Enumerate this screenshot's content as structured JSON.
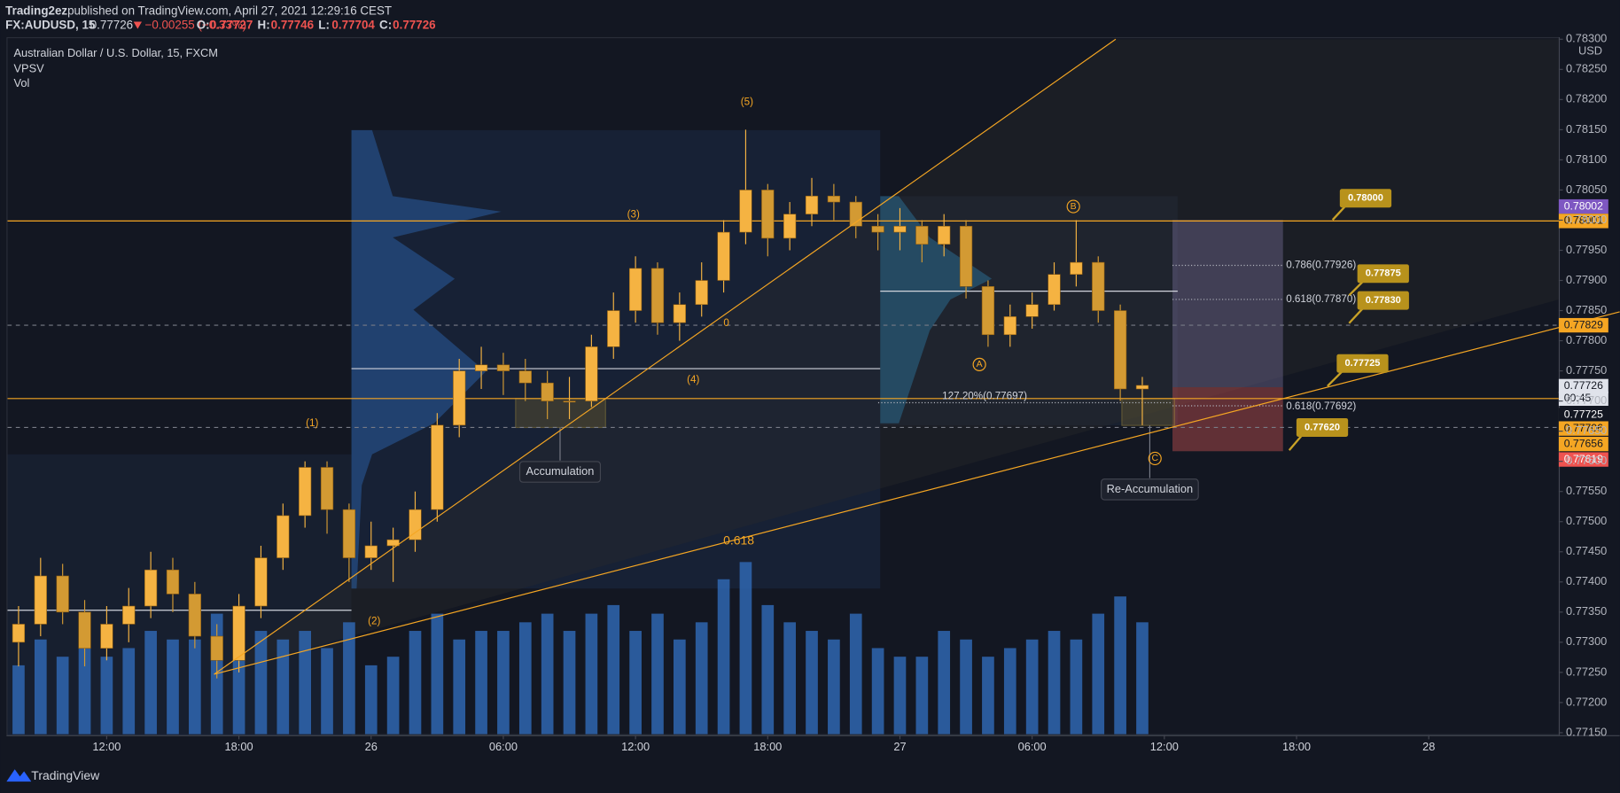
{
  "header": {
    "author": "Trading2ez",
    "published": "published on TradingView.com, April 27, 2021 12:29:16 CEST",
    "symbol": "FX:AUDUSD, 15",
    "last": "0.77726",
    "change": "−0.00255 (−0.33%)",
    "ohlc": [
      "O:",
      "0.77727",
      "H:",
      "0.77746",
      "L:",
      "0.77704",
      "C:",
      "0.77726"
    ]
  },
  "chart_data": {
    "type": "candlestick",
    "title": "Australian Dollar / U.S. Dollar, 15, FXCM",
    "indicators": [
      "VPSV",
      "Vol"
    ],
    "currency": "USD",
    "up_color": "#f5b342",
    "down_color": "#d39a33",
    "volume_color": "#2f66b0",
    "open": [
      0.773,
      0.7733,
      0.7741,
      0.7735,
      0.7729,
      0.7733,
      0.7736,
      0.7742,
      0.7738,
      0.7731,
      0.7727,
      0.7736,
      0.7744,
      0.7751,
      0.7759,
      0.7752,
      0.7744,
      0.7746,
      0.7747,
      0.7752,
      0.7766,
      0.7775,
      0.7776,
      0.7775,
      0.7773,
      0.777,
      0.777,
      0.7779,
      0.7785,
      0.7792,
      0.7783,
      0.7786,
      0.779,
      0.7798,
      0.7805,
      0.7797,
      0.7801,
      0.7804,
      0.7803,
      0.7799,
      0.7798,
      0.7799,
      0.7796,
      0.7799,
      0.7789,
      0.7781,
      0.7784,
      0.7786,
      0.7791,
      0.7793,
      0.7785,
      0.7772
    ],
    "high": [
      0.7736,
      0.7744,
      0.7743,
      0.7737,
      0.7736,
      0.7739,
      0.7745,
      0.7744,
      0.774,
      0.7733,
      0.7738,
      0.7746,
      0.7753,
      0.776,
      0.776,
      0.7753,
      0.775,
      0.7749,
      0.7755,
      0.7768,
      0.7777,
      0.7779,
      0.7778,
      0.7777,
      0.7775,
      0.7774,
      0.7781,
      0.7788,
      0.7794,
      0.7793,
      0.7788,
      0.7793,
      0.78,
      0.7815,
      0.7806,
      0.7803,
      0.7807,
      0.7806,
      0.7804,
      0.7801,
      0.7802,
      0.78,
      0.7801,
      0.78,
      0.779,
      0.7786,
      0.7788,
      0.7793,
      0.78,
      0.7794,
      0.7786,
      0.7774
    ],
    "low": [
      0.7726,
      0.7731,
      0.7733,
      0.7726,
      0.7727,
      0.773,
      0.7734,
      0.7735,
      0.7729,
      0.7724,
      0.7725,
      0.7734,
      0.7742,
      0.7749,
      0.7748,
      0.774,
      0.7742,
      0.774,
      0.7745,
      0.775,
      0.7764,
      0.7772,
      0.7771,
      0.777,
      0.7767,
      0.7767,
      0.7769,
      0.7777,
      0.7783,
      0.7781,
      0.778,
      0.7784,
      0.7788,
      0.7796,
      0.7794,
      0.7795,
      0.7799,
      0.78,
      0.7797,
      0.7795,
      0.7795,
      0.7793,
      0.7794,
      0.7787,
      0.7779,
      0.7779,
      0.7782,
      0.7785,
      0.7789,
      0.7783,
      0.777,
      0.7766
    ],
    "close": [
      0.7733,
      0.7741,
      0.7735,
      0.7729,
      0.7733,
      0.7736,
      0.7742,
      0.7738,
      0.7731,
      0.7727,
      0.7736,
      0.7744,
      0.7751,
      0.7759,
      0.7752,
      0.7744,
      0.7746,
      0.7747,
      0.7752,
      0.7766,
      0.7775,
      0.7776,
      0.7775,
      0.7773,
      0.777,
      0.777,
      0.7779,
      0.7785,
      0.7792,
      0.7783,
      0.7786,
      0.779,
      0.7798,
      0.7805,
      0.7797,
      0.7801,
      0.7804,
      0.7803,
      0.7799,
      0.7798,
      0.7799,
      0.7796,
      0.7799,
      0.7789,
      0.7781,
      0.7784,
      0.7786,
      0.7791,
      0.7793,
      0.7785,
      0.7772,
      0.77726
    ],
    "volume": [
      40,
      55,
      45,
      50,
      45,
      50,
      60,
      55,
      55,
      70,
      50,
      60,
      55,
      60,
      50,
      65,
      40,
      45,
      60,
      70,
      55,
      60,
      60,
      65,
      70,
      60,
      70,
      75,
      60,
      70,
      55,
      65,
      90,
      100,
      75,
      65,
      60,
      55,
      70,
      50,
      45,
      45,
      60,
      55,
      45,
      50,
      55,
      60,
      55,
      70,
      80,
      65
    ],
    "vol_lim": [
      0,
      120
    ],
    "xlim": [
      -0.5,
      69.9
    ],
    "xticks": [
      {
        "value": 4,
        "label": "12:00"
      },
      {
        "value": 10,
        "label": "18:00"
      },
      {
        "value": 16,
        "label": "26"
      },
      {
        "value": 22,
        "label": "06:00"
      },
      {
        "value": 28,
        "label": "12:00"
      },
      {
        "value": 34,
        "label": "18:00"
      },
      {
        "value": 40,
        "label": "27"
      },
      {
        "value": 46,
        "label": "06:00"
      },
      {
        "value": 52,
        "label": "12:00"
      },
      {
        "value": 58,
        "label": "18:00"
      },
      {
        "value": 64,
        "label": "28"
      }
    ],
    "ylim": [
      0.7715,
      0.783
    ],
    "yticks": [
      {
        "value": 0.7715,
        "label": "0.77150"
      },
      {
        "value": 0.772,
        "label": "0.77200"
      },
      {
        "value": 0.7725,
        "label": "0.77250"
      },
      {
        "value": 0.773,
        "label": "0.77300"
      },
      {
        "value": 0.7735,
        "label": "0.77350"
      },
      {
        "value": 0.774,
        "label": "0.77400"
      },
      {
        "value": 0.7745,
        "label": "0.77450"
      },
      {
        "value": 0.775,
        "label": "0.77500"
      },
      {
        "value": 0.7755,
        "label": "0.77550"
      },
      {
        "value": 0.776,
        "label": "0.77600"
      },
      {
        "value": 0.7765,
        "label": "0.77650"
      },
      {
        "value": 0.777,
        "label": "0.77700"
      },
      {
        "value": 0.7775,
        "label": "0.77750"
      },
      {
        "value": 0.778,
        "label": "0.77800"
      },
      {
        "value": 0.7785,
        "label": "0.77850"
      },
      {
        "value": 0.779,
        "label": "0.77900"
      },
      {
        "value": 0.7795,
        "label": "0.77950"
      },
      {
        "value": 0.78,
        "label": "0.78000"
      },
      {
        "value": 0.7805,
        "label": "0.78050"
      },
      {
        "value": 0.781,
        "label": "0.78100"
      },
      {
        "value": 0.7815,
        "label": "0.78150"
      },
      {
        "value": 0.782,
        "label": "0.78200"
      },
      {
        "value": 0.7825,
        "label": "0.78250"
      },
      {
        "value": 0.783,
        "label": "0.78300"
      }
    ],
    "annotations": [
      "(1)",
      "(2)",
      "(3)",
      "(4)",
      "(5)",
      "0",
      "0.618",
      "A",
      "B",
      "C",
      "Accumulation",
      "Re-Accumulation",
      "0.786(0.77926)",
      "0.618(0.77870)",
      "127.20%(0.77697)",
      "0.618(0.77692)"
    ],
    "callouts": [
      "0.78000",
      "0.77875",
      "0.77830",
      "0.77725",
      "0.77620"
    ],
    "price_badges": [
      "0.78002",
      "0.78001",
      "0.77829",
      "0.77726",
      "00:45",
      "0.77725",
      "0.77706",
      "0.77656",
      "0.77619"
    ]
  },
  "footer": {
    "brand": "TradingView"
  }
}
